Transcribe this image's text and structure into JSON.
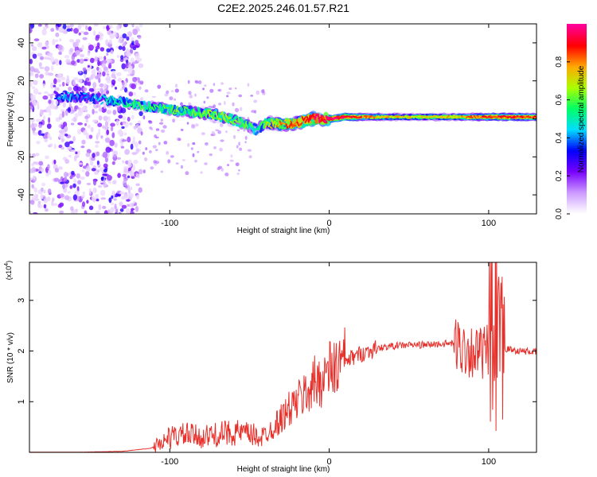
{
  "figure": {
    "title": "C2E2.2025.246.01.57.R21"
  },
  "chart_data": [
    {
      "type": "heatmap",
      "title": "C2E2.2025.246.01.57.R21",
      "xlabel": "Height of straight line (km)",
      "ylabel": "Frequency (Hz)",
      "xlim": [
        -188,
        130
      ],
      "ylim": [
        -50,
        50
      ],
      "xticks": [
        -100,
        0,
        100
      ],
      "yticks": [
        -40,
        -20,
        0,
        20,
        40
      ],
      "colorbar": {
        "label": "Normalized spectral amplitude",
        "range": [
          0,
          1
        ],
        "ticks": [
          0.0,
          0.2,
          0.4,
          0.6,
          0.8
        ],
        "colors": [
          "#ffffff",
          "#cc99ff",
          "#7700ff",
          "#0000ff",
          "#00ddff",
          "#00ff66",
          "#aaff00",
          "#ffaa00",
          "#ff0000",
          "#ff0099"
        ]
      },
      "ridge": {
        "x": [
          -170,
          -150,
          -130,
          -110,
          -90,
          -70,
          -55,
          -45,
          -40,
          -30,
          -20,
          -10,
          0,
          10,
          30,
          60,
          90,
          105,
          130
        ],
        "freq": [
          12,
          11,
          9,
          6,
          4,
          2,
          -2,
          -6,
          -2,
          -3,
          -2,
          0,
          0,
          1,
          1,
          1,
          1,
          1,
          1
        ],
        "amplitude": [
          0.35,
          0.35,
          0.45,
          0.5,
          0.55,
          0.6,
          0.55,
          0.45,
          0.6,
          0.75,
          0.8,
          0.9,
          0.95,
          0.9,
          0.7,
          0.65,
          0.75,
          0.85,
          0.8
        ]
      },
      "notes": "Scattered low-amplitude energy across -50..50 Hz for x < -120 km."
    },
    {
      "type": "line",
      "xlabel": "Height of straight line (km)",
      "ylabel": "SNR (10 * v/v)",
      "yscale_label": "(x10",
      "yscale_exp": "4",
      "xlim": [
        -188,
        130
      ],
      "ylim": [
        0,
        3.75
      ],
      "xticks": [
        -100,
        0,
        100
      ],
      "yticks": [
        1,
        2,
        3
      ],
      "color": "#e8302b",
      "x": [
        -188,
        -160,
        -130,
        -112,
        -105,
        -100,
        -90,
        -80,
        -70,
        -60,
        -50,
        -42,
        -35,
        -25,
        -15,
        -10,
        -5,
        0,
        5,
        10,
        20,
        30,
        40,
        50,
        60,
        70,
        78,
        85,
        90,
        95,
        100,
        103,
        105,
        106,
        107,
        108,
        110,
        115,
        120,
        130
      ],
      "y": [
        0.0,
        0.0,
        0.02,
        0.08,
        0.2,
        0.3,
        0.35,
        0.3,
        0.35,
        0.4,
        0.35,
        0.3,
        0.5,
        0.85,
        1.15,
        1.35,
        1.45,
        1.6,
        1.7,
        1.8,
        1.95,
        2.05,
        2.1,
        2.12,
        2.12,
        2.14,
        2.15,
        2.05,
        2.0,
        1.95,
        2.0,
        2.15,
        2.25,
        2.4,
        1.5,
        2.1,
        2.05,
        2.02,
        2.0,
        1.98
      ]
    }
  ]
}
